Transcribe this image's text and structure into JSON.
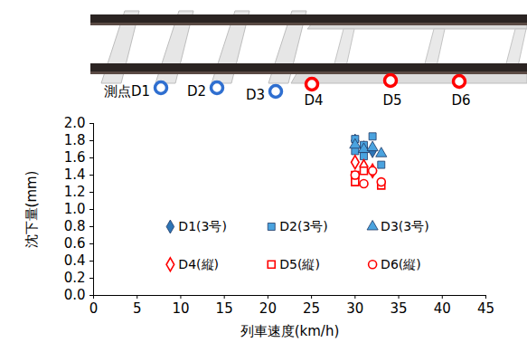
{
  "chart_data": {
    "type": "scatter",
    "x_label": "列車速度(km/h)",
    "y_label": "沈下量(mm)",
    "xlim": [
      0,
      45
    ],
    "xticks": [
      0,
      5,
      10,
      15,
      20,
      25,
      30,
      35,
      40,
      45
    ],
    "ylim": [
      0,
      2.0
    ],
    "yticks": [
      {
        "value": 0,
        "label": "0.0"
      },
      {
        "value": 0.2,
        "label": "0.2"
      },
      {
        "value": 0.4,
        "label": "0.4"
      },
      {
        "value": 0.6,
        "label": "0.6"
      },
      {
        "value": 0.8,
        "label": "0.8"
      },
      {
        "value": 1.0,
        "label": "1.0"
      },
      {
        "value": 1.2,
        "label": "1.2"
      },
      {
        "value": 1.4,
        "label": "1.4"
      },
      {
        "value": 1.6,
        "label": "1.6"
      },
      {
        "value": 1.8,
        "label": "1.8"
      },
      {
        "value": 2.0,
        "label": "2.0"
      }
    ],
    "grid": false,
    "legend": "bottom",
    "annotations": [
      {
        "text": "測点D1",
        "color": "#2f6fd0"
      },
      {
        "text": "D2",
        "color": "#2f6fd0"
      },
      {
        "text": "D3",
        "color": "#2f6fd0"
      },
      {
        "text": "D4",
        "color": "#ff0000"
      },
      {
        "text": "D5",
        "color": "#ff0000"
      },
      {
        "text": "D6",
        "color": "#ff0000"
      }
    ],
    "series": [
      {
        "name": "D1(3号)",
        "color": "#2e75b6",
        "marker": "diamond",
        "x": [
          30,
          31,
          32
        ],
        "values": [
          1.8,
          1.72,
          1.68
        ]
      },
      {
        "name": "D2(3号)",
        "color": "#4aa3df",
        "marker": "square",
        "x": [
          30,
          30,
          31,
          31,
          32,
          33
        ],
        "values": [
          1.82,
          1.68,
          1.75,
          1.62,
          1.85,
          1.52
        ]
      },
      {
        "name": "D3(3号)",
        "color": "#4aa3df",
        "marker": "triangle",
        "x": [
          30,
          31,
          32,
          33
        ],
        "values": [
          1.75,
          1.7,
          1.72,
          1.65
        ]
      },
      {
        "name": "D4(縦)",
        "color": "#ff0000",
        "marker": "diamond-open",
        "x": [
          30,
          31,
          32
        ],
        "values": [
          1.55,
          1.5,
          1.45
        ]
      },
      {
        "name": "D5(縦)",
        "color": "#ff0000",
        "marker": "square-open",
        "x": [
          30,
          30,
          31,
          33
        ],
        "values": [
          1.32,
          1.4,
          1.45,
          1.28
        ]
      },
      {
        "name": "D6(縦)",
        "color": "#ff0000",
        "marker": "circle-open",
        "x": [
          30,
          31,
          32,
          33
        ],
        "values": [
          1.4,
          1.3,
          1.45,
          1.32
        ]
      }
    ]
  }
}
